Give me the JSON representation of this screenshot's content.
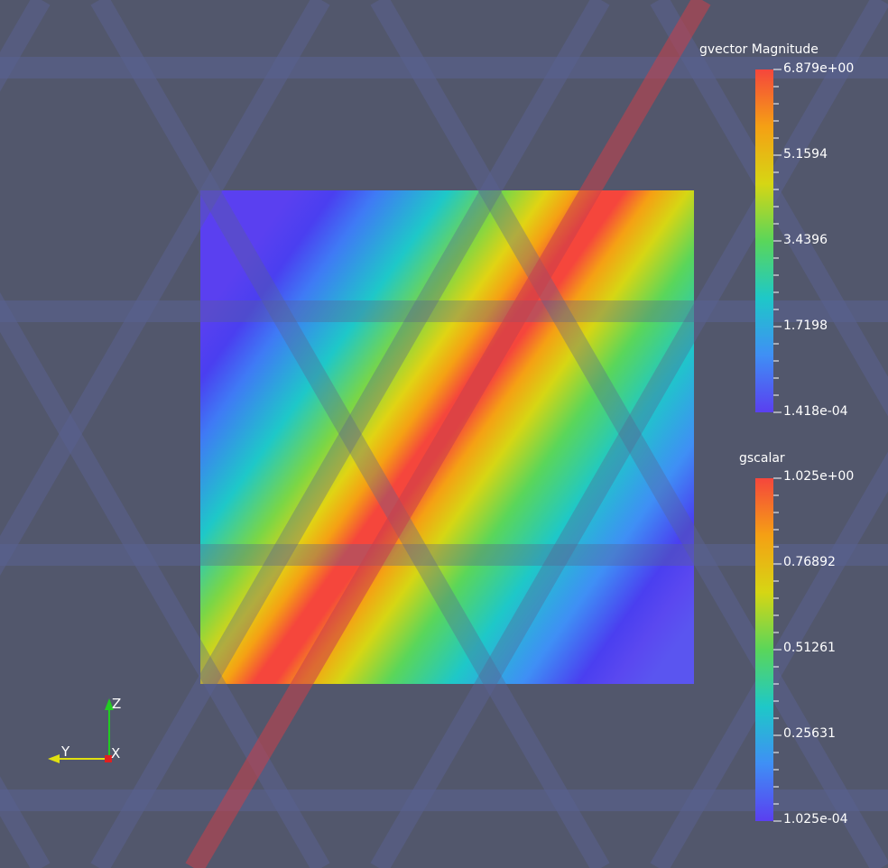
{
  "viewport": {
    "background": "#52576c"
  },
  "colorbars": [
    {
      "title": "gvector Magnitude",
      "max_label": "6.879e+00",
      "min_label": "1.418e-04",
      "mid_labels": [
        "5.1594",
        "3.4396",
        "1.7198"
      ]
    },
    {
      "title": "gscalar",
      "max_label": "1.025e+00",
      "min_label": "1.025e-04",
      "mid_labels": [
        "0.76892",
        "0.51261",
        "0.25631"
      ]
    }
  ],
  "orientation_axes": {
    "z_label": "Z",
    "y_label": "Y",
    "x_label": "X",
    "z_color": "#22cc22",
    "y_color": "#e0e010",
    "x_color": "#e02020"
  },
  "colormap": [
    "#5a3ff0",
    "#3f8ff5",
    "#1ec8c8",
    "#5ad65a",
    "#d6d614",
    "#f5a014",
    "#f5463c"
  ]
}
